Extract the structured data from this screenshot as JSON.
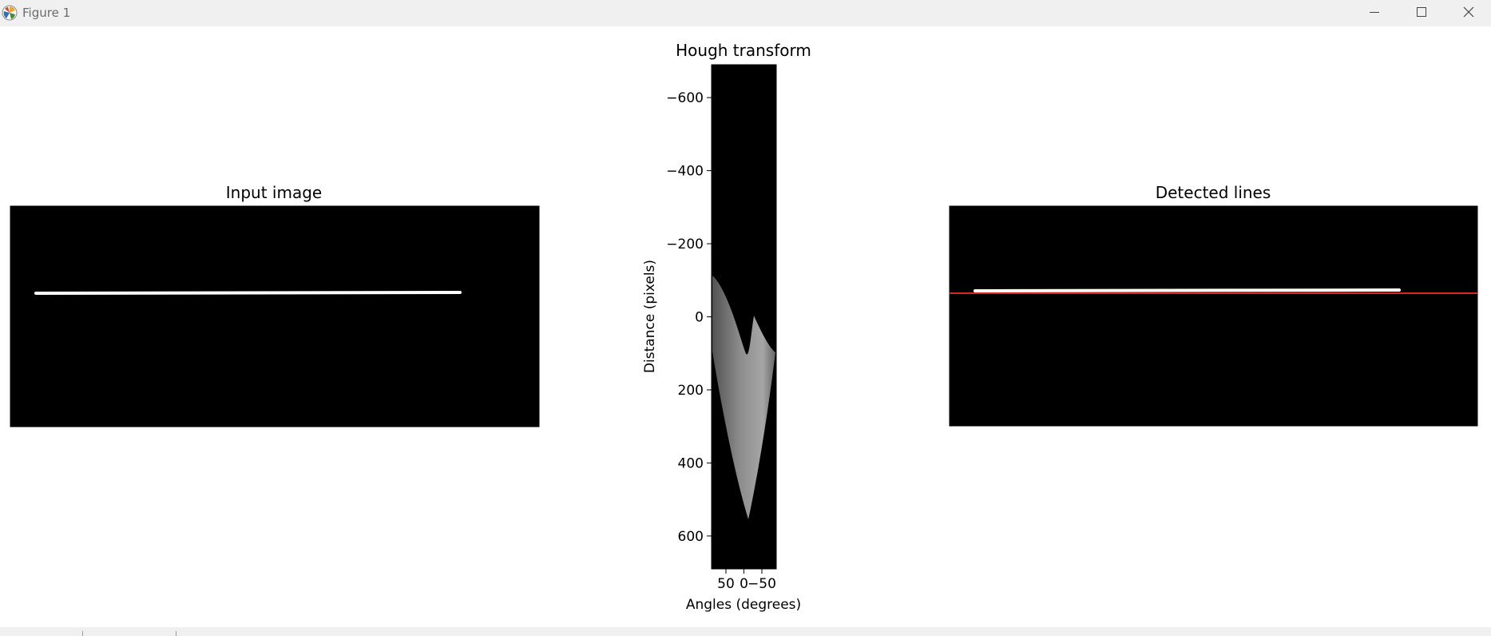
{
  "window": {
    "title": "Figure 1",
    "controls": [
      "minimize",
      "maximize",
      "close"
    ]
  },
  "colors": {
    "titlebar": "#f0f0f0",
    "image_background": "#000000",
    "line": "#ffffff",
    "detected_line": "#d62728"
  },
  "chart_data": [
    {
      "type": "image",
      "title": "Input image",
      "content": "black image containing a single near-horizontal white line segment"
    },
    {
      "type": "heatmap",
      "title": "Hough transform",
      "xlabel": "Angles (degrees)",
      "ylabel": "Distance (pixels)",
      "xticks": [
        50,
        0,
        -50
      ],
      "xtick_labels": [
        "50",
        "0",
        "−50"
      ],
      "yticks": [
        -600,
        -400,
        -200,
        0,
        200,
        400,
        600
      ],
      "ytick_labels": [
        "−600",
        "−400",
        "−200",
        "0",
        "200",
        "400",
        "600"
      ],
      "xlim": [
        90,
        -90
      ],
      "ylim": [
        -690,
        690
      ],
      "colormap": "gray"
    },
    {
      "type": "image",
      "title": "Detected lines",
      "content": "input image with the detected line overlaid in red"
    }
  ]
}
